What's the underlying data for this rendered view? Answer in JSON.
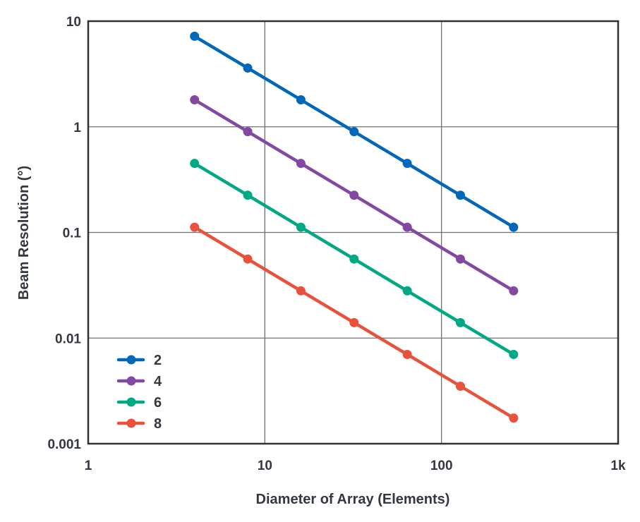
{
  "chart_data": {
    "type": "line",
    "title": "",
    "xlabel": "Diameter of Array (Elements)",
    "ylabel": "Beam Resolution (°)",
    "xscale": "log",
    "yscale": "log",
    "xlim": [
      1,
      1000
    ],
    "ylim": [
      0.001,
      10
    ],
    "x_ticks": [
      {
        "value": 1,
        "label": "1"
      },
      {
        "value": 10,
        "label": "10"
      },
      {
        "value": 100,
        "label": "100"
      },
      {
        "value": 1000,
        "label": "1k"
      }
    ],
    "y_ticks": [
      {
        "value": 0.001,
        "label": "0.001"
      },
      {
        "value": 0.01,
        "label": "0.01"
      },
      {
        "value": 0.1,
        "label": "0.1"
      },
      {
        "value": 1,
        "label": "1"
      },
      {
        "value": 10,
        "label": "10"
      }
    ],
    "grid": true,
    "legend_position": "bottom-left",
    "x": [
      4,
      8,
      16,
      32,
      64,
      128,
      256
    ],
    "series": [
      {
        "name": "2",
        "color": "#0067b9",
        "values": [
          7.2,
          3.6,
          1.8,
          0.9,
          0.45,
          0.225,
          0.112
        ]
      },
      {
        "name": "4",
        "color": "#8349a0",
        "values": [
          1.8,
          0.9,
          0.45,
          0.225,
          0.112,
          0.056,
          0.028
        ]
      },
      {
        "name": "6",
        "color": "#00a884",
        "values": [
          0.45,
          0.225,
          0.112,
          0.056,
          0.028,
          0.014,
          0.007
        ]
      },
      {
        "name": "8",
        "color": "#e8513c",
        "values": [
          0.112,
          0.056,
          0.028,
          0.014,
          0.007,
          0.0035,
          0.00175
        ]
      }
    ]
  }
}
